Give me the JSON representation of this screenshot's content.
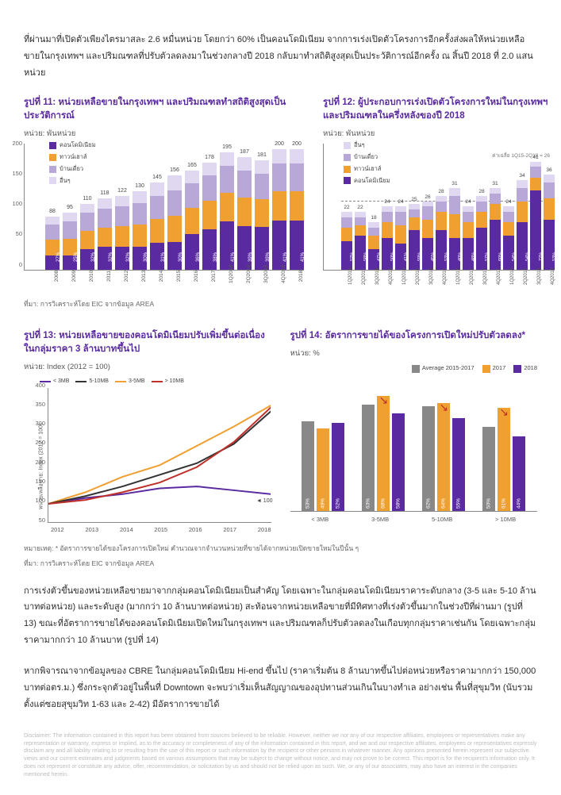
{
  "intro_paragraph": "ที่ผ่านมาที่เปิดตัวเพียงไตรมาสละ 2.6 หมื่นหน่วย โดยกว่า 60% เป็นคอนโดมิเนียม จากการเร่งเปิดตัวโครงการอีกครั้งส่งผลให้หน่วยเหลือขายในกรุงเทพฯ และปริมณฑลที่ปรับตัวลดลงมาในช่วงกลางปี 2018 กลับมาทำสถิติสูงสุดเป็นประวัติการณ์อีกครั้ง ณ สิ้นปี 2018 ที่ 2.0 แสนหน่วย",
  "chart11": {
    "title": "รูปที่ 11: หน่วยเหลือขายในกรุงเทพฯ และปริมณฑลทำสถิติสูงสุดเป็นประวัติการณ์",
    "unit": "หน่วย: พันหน่วย",
    "source": "ที่มา: การวิเคราะห์โดย EIC จากข้อมูล AREA",
    "legend": [
      "คอนโดมิเนียม",
      "ทาวน์เฮาส์",
      "บ้านเดี่ยว",
      "อื่นๆ"
    ],
    "legend_colors": [
      "#5a2aa0",
      "#f0a030",
      "#b8a8d8",
      "#e0d8f0"
    ],
    "yticks": [
      0,
      50,
      100,
      150,
      200
    ],
    "ymax": 210,
    "years": [
      "2008",
      "2009",
      "2010",
      "2011",
      "2012",
      "2013",
      "2014",
      "2015",
      "2016",
      "2017",
      "1Q2018",
      "2Q2018",
      "3Q2018",
      "4Q2018",
      "2018"
    ],
    "totals": [
      88,
      95,
      110,
      118,
      122,
      130,
      145,
      156,
      165,
      178,
      195,
      187,
      181,
      200,
      200
    ],
    "condo_pct": [
      "27%",
      "25%",
      "32%",
      "32%",
      "32%",
      "30%",
      "31%",
      "30%",
      "36%",
      "38%",
      "41%",
      "39%",
      "39%",
      "41%",
      "41%"
    ],
    "stacks": [
      {
        "condo": 24,
        "town": 26,
        "single": 25,
        "other": 13
      },
      {
        "condo": 24,
        "town": 28,
        "single": 28,
        "other": 15
      },
      {
        "condo": 35,
        "town": 30,
        "single": 30,
        "other": 15
      },
      {
        "condo": 38,
        "town": 32,
        "single": 32,
        "other": 16
      },
      {
        "condo": 39,
        "town": 33,
        "single": 33,
        "other": 17
      },
      {
        "condo": 39,
        "town": 36,
        "single": 36,
        "other": 19
      },
      {
        "condo": 45,
        "town": 40,
        "single": 38,
        "other": 22
      },
      {
        "condo": 47,
        "town": 43,
        "single": 42,
        "other": 24
      },
      {
        "condo": 59,
        "town": 44,
        "single": 40,
        "other": 22
      },
      {
        "condo": 68,
        "town": 46,
        "single": 42,
        "other": 22
      },
      {
        "condo": 80,
        "town": 48,
        "single": 44,
        "other": 23
      },
      {
        "condo": 73,
        "town": 47,
        "single": 44,
        "other": 23
      },
      {
        "condo": 71,
        "town": 46,
        "single": 42,
        "other": 22
      },
      {
        "condo": 82,
        "town": 49,
        "single": 45,
        "other": 24
      },
      {
        "condo": 82,
        "town": 49,
        "single": 45,
        "other": 24
      }
    ]
  },
  "chart12": {
    "title": "รูปที่ 12: ผู้ประกอบการเร่งเปิดตัวโครงการใหม่ในกรุงเทพฯ และปริมณฑลในครึ่งหลังของปี 2018",
    "unit": "หน่วย: พันหน่วย",
    "legend": [
      "อื่นๆ",
      "บ้านเดี่ยว",
      "ทาวน์เฮาส์",
      "คอนโดมิเนียม"
    ],
    "legend_colors": [
      "#e0d8f0",
      "#b8a8d8",
      "#f0a030",
      "#5a2aa0"
    ],
    "annot": "ค่าเฉลี่ย 1Q15-2Q18 = 26",
    "yticks": [
      0,
      50
    ],
    "ymax": 48,
    "xlabels": [
      "1Q2015",
      "2Q2015",
      "3Q2015",
      "4Q2015",
      "1Q2016",
      "2Q2016",
      "3Q2016",
      "4Q2016",
      "1Q2017",
      "2Q2017",
      "3Q2017",
      "4Q2017",
      "1Q2018",
      "2Q2018",
      "3Q2018",
      "4Q2018"
    ],
    "totals": [
      22,
      22,
      18,
      24,
      24,
      25,
      26,
      28,
      31,
      24,
      28,
      31,
      24,
      34,
      41,
      36
    ],
    "condo_pct": [
      "52%",
      "58%",
      "47%",
      "50%",
      "41%",
      "59%",
      "45%",
      "53%",
      "40%",
      "48%",
      "57%",
      "60%",
      "54%",
      "54%",
      "72%",
      "53%"
    ],
    "last_two_highlight": [
      19,
      16
    ],
    "stacks": [
      {
        "condo": 11,
        "town": 5,
        "single": 4,
        "other": 2
      },
      {
        "condo": 13,
        "town": 4,
        "single": 3,
        "other": 2
      },
      {
        "condo": 8,
        "town": 5,
        "single": 3,
        "other": 2
      },
      {
        "condo": 12,
        "town": 6,
        "single": 4,
        "other": 2
      },
      {
        "condo": 10,
        "town": 7,
        "single": 5,
        "other": 2
      },
      {
        "condo": 15,
        "town": 5,
        "single": 3,
        "other": 2
      },
      {
        "condo": 12,
        "town": 7,
        "single": 5,
        "other": 2
      },
      {
        "condo": 15,
        "town": 7,
        "single": 4,
        "other": 2
      },
      {
        "condo": 12,
        "town": 9,
        "single": 7,
        "other": 3
      },
      {
        "condo": 12,
        "town": 6,
        "single": 4,
        "other": 2
      },
      {
        "condo": 16,
        "town": 6,
        "single": 4,
        "other": 2
      },
      {
        "condo": 19,
        "town": 6,
        "single": 4,
        "other": 2
      },
      {
        "condo": 13,
        "town": 5,
        "single": 4,
        "other": 2
      },
      {
        "condo": 18,
        "town": 8,
        "single": 5,
        "other": 3
      },
      {
        "condo": 30,
        "town": 5,
        "single": 4,
        "other": 2
      },
      {
        "condo": 19,
        "town": 8,
        "single": 6,
        "other": 3
      }
    ]
  },
  "chart13": {
    "title": "รูปที่ 13: หน่วยเหลือขายของคอนโดมิเนียมปรับเพิ่มขึ้นต่อเนื่องในกลุ่มราคา 3 ล้านบาทขึ้นไป",
    "unit": "หน่วย: Index (2012 = 100)",
    "ylabel": "หน่วยเหลือขาย: Index (2012 = 100)",
    "yticks": [
      50,
      100,
      150,
      200,
      250,
      300,
      350,
      400
    ],
    "ymax": 400,
    "ymin": 50,
    "xlabels": [
      "2012",
      "2013",
      "2014",
      "2015",
      "2016",
      "2017",
      "2018"
    ],
    "callout": "◄ 100",
    "legend": [
      {
        "label": "< 3MB",
        "color": "#5a2aa0"
      },
      {
        "label": "5-10MB",
        "color": "#333333"
      },
      {
        "label": "3-5MB",
        "color": "#f0a030"
      },
      {
        "label": "> 10MB",
        "color": "#c0302a"
      }
    ],
    "series": {
      "lt3": [
        100,
        115,
        125,
        140,
        145,
        135,
        125
      ],
      "m35": [
        100,
        130,
        170,
        200,
        250,
        300,
        355
      ],
      "m510": [
        100,
        120,
        145,
        175,
        205,
        255,
        340
      ],
      "gt10": [
        100,
        110,
        130,
        155,
        195,
        260,
        350
      ]
    }
  },
  "chart14": {
    "title": "รูปที่ 14: อัตราการขายได้ของโครงการเปิดใหม่ปรับตัวลดลง*",
    "unit": "หน่วย: %",
    "legend": [
      {
        "label": "Average 2015-2017",
        "color": "#888888"
      },
      {
        "label": "2017",
        "color": "#f0a030"
      },
      {
        "label": "2018",
        "color": "#5a2aa0"
      }
    ],
    "ymax": 80,
    "xlabels": [
      "< 3MB",
      "3-5MB",
      "5-10MB",
      "> 10MB"
    ],
    "groups": [
      {
        "avg": 53,
        "v17": 49,
        "v18": 52
      },
      {
        "avg": 63,
        "v17": 68,
        "v18": 58
      },
      {
        "avg": 62,
        "v17": 64,
        "v18": 55
      },
      {
        "avg": 50,
        "v17": 61,
        "v18": 44
      }
    ],
    "arrows_on_groups": [
      1,
      2,
      3
    ]
  },
  "note_line": "หมายเหตุ: * อัตราการขายได้ของโครงการเปิดใหม่ คำนวณจากจำนวนหน่วยที่ขายได้จากหน่วยเปิดขายใหม่ในปีนั้น ๆ",
  "source_shared": "ที่มา: การวิเคราะห์โดย EIC จากข้อมูล AREA",
  "para2": "การเร่งตัวขึ้นของหน่วยเหลือขายมาจากกลุ่มคอนโดมิเนียมเป็นสำคัญ โดยเฉพาะในกลุ่มคอนโดมิเนียมราคาระดับกลาง (3-5 และ 5-10 ล้านบาทต่อหน่วย) และระดับสูง (มากกว่า 10 ล้านบาทต่อหน่วย) สะท้อนจากหน่วยเหลือขายที่มีทิศทางที่เร่งตัวขึ้นมากในช่วงปีที่ผ่านมา (รูปที่ 13) ขณะที่อัตราการขายได้ของคอนโดมิเนียมเปิดใหม่ในกรุงเทพฯ และปริมณฑลก็ปรับตัวลดลงในเกือบทุกกลุ่มราคาเช่นกัน โดยเฉพาะกลุ่มราคามากกว่า 10 ล้านบาท (รูปที่ 14)",
  "para3": "หากพิจารณาจากข้อมูลของ CBRE ในกลุ่มคอนโดมิเนียม Hi-end ขึ้นไป (ราคาเริ่มต้น 8 ล้านบาทขึ้นไปต่อหน่วยหรือราคามากกว่า 150,000 บาทต่อตร.ม.) ซึ่งกระจุกตัวอยู่ในพื้นที่ Downtown จะพบว่าเริ่มเห็นสัญญาณของอุปทานส่วนเกินในบางทําเล อย่างเช่น พื้นที่สุขุมวิท (นับรวมตั้งแต่ซอยสุขุมวิท 1-63 และ 2-42) มีอัตราการขายได้",
  "disclaimer": "Disclaimer: The information contained in this report has been obtained from sources believed to be reliable. However, neither we nor any of our respective affiliates, employees or representatives make any representation or warranty, express or implied, as to the accuracy or completeness of any of the information contained in this report, and we and our respective affiliates, employees or representatives expressly disclaim any and all liability relating to or resulting from the use of this report or such information by the recipient or other persons in whatever manner. Any opinions presented herein represent our subjective views and our current estimates and judgments based on various assumptions that may be subject to change without notice, and may not prove to be correct. This report is for the recipient's information only. It does not represent or constitute any advice, offer, recommendation, or solicitation by us and should not be relied upon as such. We, or any of our associates, may also have an interest in the companies mentioned herein."
}
